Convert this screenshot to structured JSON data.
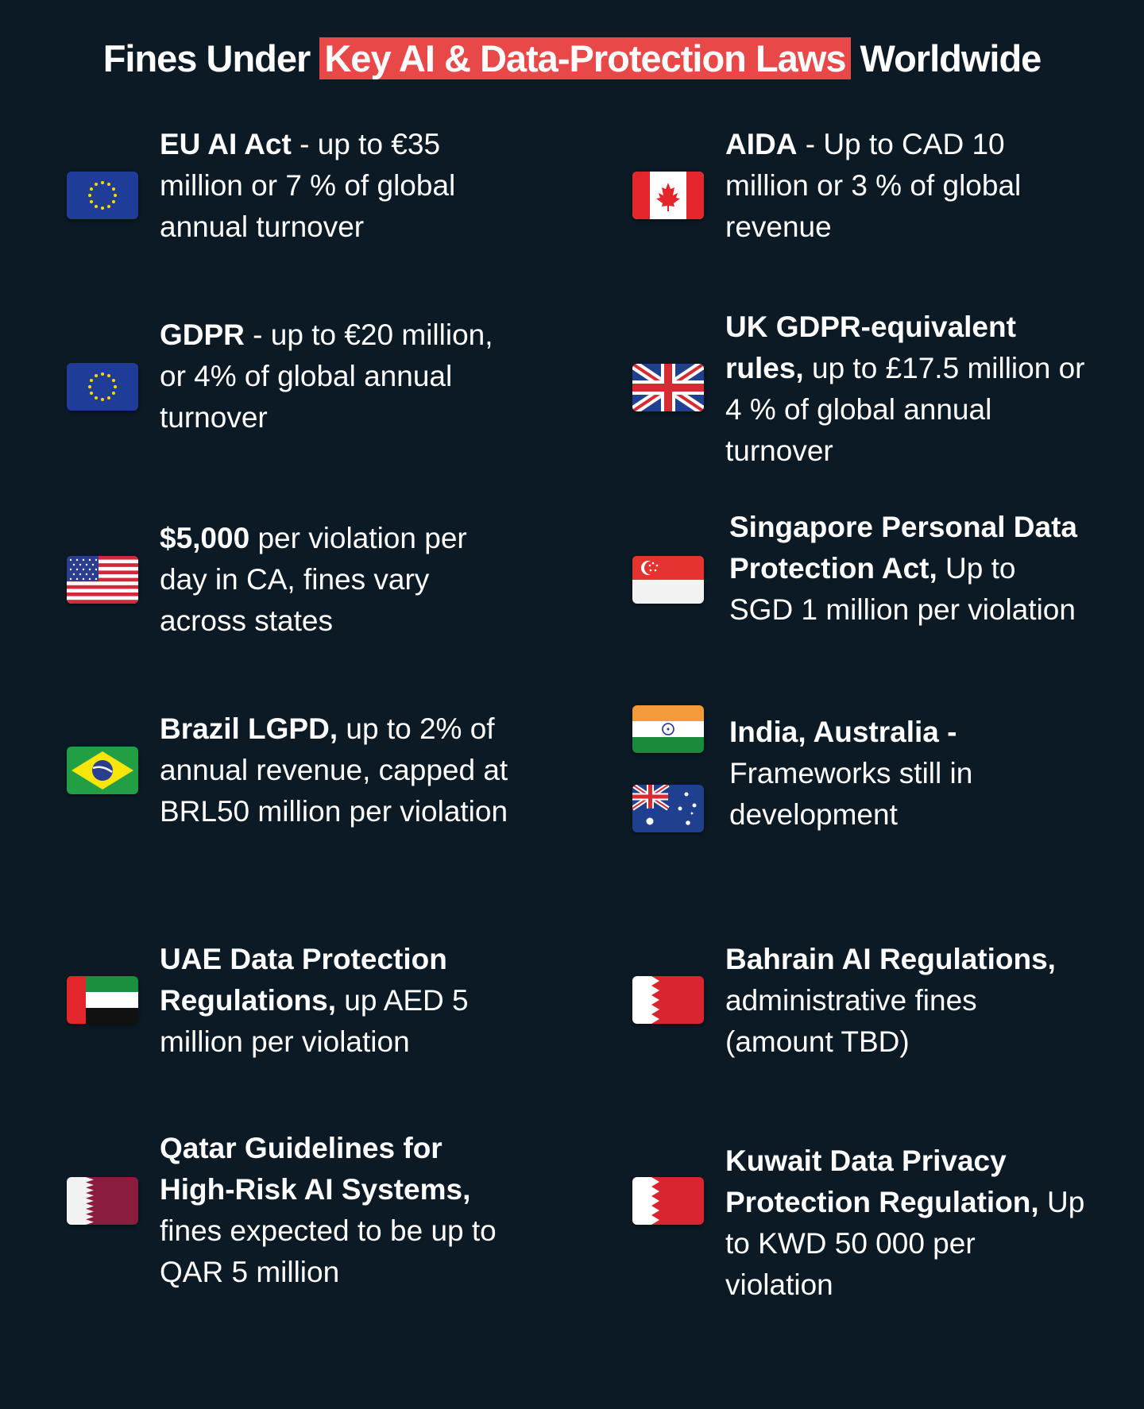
{
  "title": {
    "before": "Fines Under ",
    "highlight": "Key AI & Data-Protection Laws",
    "after": " Worldwide",
    "highlight_color": "#e84848"
  },
  "colors": {
    "background": "#0b1a24",
    "text": "#ffffff"
  },
  "entries": [
    {
      "id": "eu-ai-act",
      "flags": [
        "eu-flag-icon"
      ],
      "bold": "EU AI Act",
      "rest": " - up to €35 million or 7 % of global annual turnover"
    },
    {
      "id": "aida",
      "flags": [
        "canada-flag-icon"
      ],
      "bold": "AIDA",
      "rest": " - Up to CAD 10 million or 3 % of global revenue"
    },
    {
      "id": "gdpr",
      "flags": [
        "eu-flag-icon"
      ],
      "bold": "GDPR",
      "rest": " - up to €20 million, or 4% of  global annual turnover"
    },
    {
      "id": "uk-gdpr",
      "flags": [
        "uk-flag-icon"
      ],
      "bold": "UK GDPR-equivalent rules,",
      "rest": " up to £17.5 million or 4 % of global annual turnover"
    },
    {
      "id": "us",
      "flags": [
        "us-flag-icon"
      ],
      "bold": "$5,000",
      "rest": " per violation per day in CA, fines vary across states"
    },
    {
      "id": "singapore-pdpa",
      "flags": [
        "singapore-flag-icon"
      ],
      "bold": "Singapore Personal Data Protection Act,",
      "rest": " Up to SGD 1 million per violation"
    },
    {
      "id": "brazil-lgpd",
      "flags": [
        "brazil-flag-icon"
      ],
      "bold": "Brazil LGPD,",
      "rest": " up to 2% of annual revenue, capped at BRL50 million per violation"
    },
    {
      "id": "india-australia",
      "flags": [
        "india-flag-icon",
        "australia-flag-icon"
      ],
      "bold": "India, Australia -",
      "rest": " Frameworks still in development"
    },
    {
      "id": "uae",
      "flags": [
        "uae-flag-icon"
      ],
      "bold": "UAE Data Protection Regulations,",
      "rest": " up AED 5 million per violation"
    },
    {
      "id": "bahrain",
      "flags": [
        "bahrain-flag-icon"
      ],
      "bold": "Bahrain AI Regulations,",
      "rest": " administrative fines (amount TBD)"
    },
    {
      "id": "qatar",
      "flags": [
        "qatar-flag-icon"
      ],
      "bold": "Qatar Guidelines for High-Risk AI Systems,",
      "rest": " fines expected to be up to QAR 5 million"
    },
    {
      "id": "kuwait",
      "flags": [
        "bahrain-flag-icon"
      ],
      "bold": "Kuwait Data Privacy Protection Regulation,",
      "rest": " Up to KWD 50 000 per violation"
    }
  ]
}
